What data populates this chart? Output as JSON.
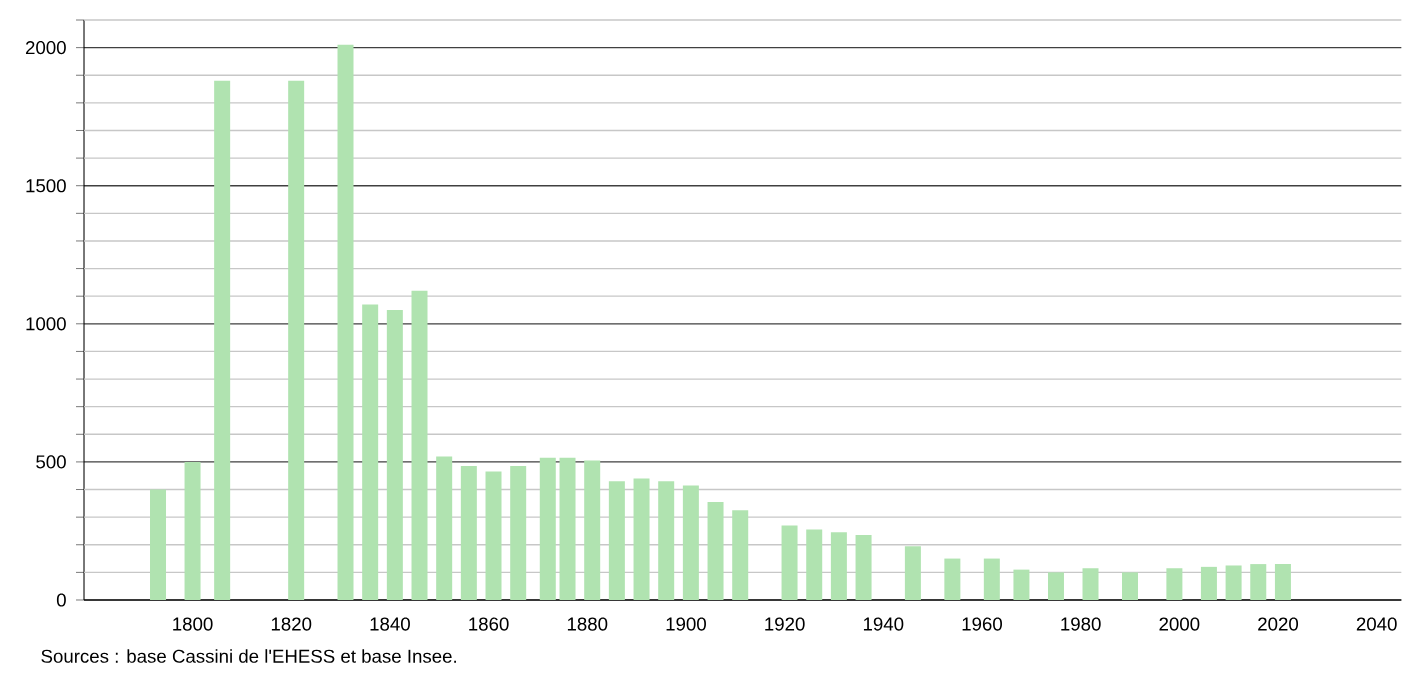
{
  "chart_data": {
    "type": "bar",
    "x": [
      1793,
      1800,
      1806,
      1821,
      1831,
      1836,
      1841,
      1846,
      1851,
      1856,
      1861,
      1866,
      1872,
      1876,
      1881,
      1886,
      1891,
      1896,
      1901,
      1906,
      1911,
      1921,
      1926,
      1931,
      1936,
      1946,
      1954,
      1962,
      1968,
      1975,
      1982,
      1990,
      1999,
      2006,
      2011,
      2016,
      2021
    ],
    "values": [
      400,
      500,
      1880,
      1880,
      2010,
      1070,
      1050,
      1120,
      520,
      485,
      465,
      485,
      515,
      515,
      505,
      430,
      440,
      430,
      415,
      355,
      325,
      270,
      255,
      245,
      235,
      195,
      150,
      150,
      110,
      100,
      115,
      100,
      115,
      120,
      125,
      130,
      130
    ],
    "color": "#b0e3b0",
    "xlim": [
      1778,
      2045
    ],
    "xticks": [
      1800,
      1820,
      1840,
      1860,
      1880,
      1900,
      1920,
      1940,
      1960,
      1980,
      2000,
      2020,
      2040
    ],
    "ylim": [
      0,
      2100
    ],
    "yticks": [
      0,
      {
        "value": 100,
        "label": null
      },
      {
        "value": 200,
        "label": null
      },
      {
        "value": 300,
        "label": null
      },
      {
        "value": 400,
        "label": null
      },
      500,
      {
        "value": 600,
        "label": null
      },
      {
        "value": 700,
        "label": null
      },
      {
        "value": 800,
        "label": null
      },
      {
        "value": 900,
        "label": null
      },
      1000,
      {
        "value": 1100,
        "label": null
      },
      {
        "value": 1200,
        "label": null
      },
      {
        "value": 1300,
        "label": null
      },
      {
        "value": 1400,
        "label": null
      },
      1500,
      {
        "value": 1600,
        "label": null
      },
      {
        "value": 1700,
        "label": null
      },
      {
        "value": 1800,
        "label": null
      },
      {
        "value": 1900,
        "label": null
      },
      2000,
      {
        "value": 2100,
        "label": null
      }
    ],
    "grid": "y",
    "annotations": [
      "Sources : base Cassini de l'EHESS et base Insee."
    ]
  }
}
